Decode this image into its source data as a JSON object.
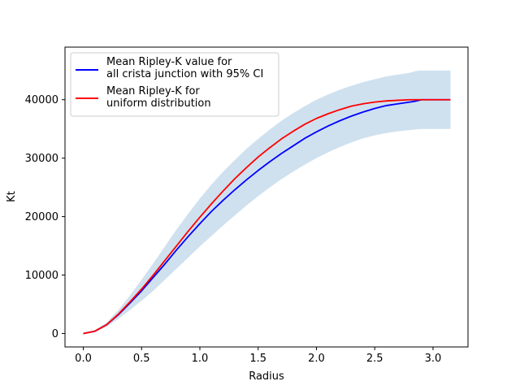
{
  "chart_data": {
    "type": "line",
    "xlabel": "Radius",
    "ylabel": "Kt",
    "xlim": [
      -0.157,
      3.3
    ],
    "ylim": [
      -2300,
      49000
    ],
    "xticks": [
      0.0,
      0.5,
      1.0,
      1.5,
      2.0,
      2.5,
      3.0
    ],
    "xtick_labels": [
      "0.0",
      "0.5",
      "1.0",
      "1.5",
      "2.0",
      "2.5",
      "3.0"
    ],
    "yticks": [
      0,
      10000,
      20000,
      30000,
      40000
    ],
    "ytick_labels": [
      "0",
      "10000",
      "20000",
      "30000",
      "40000"
    ],
    "legend_position": "top-left",
    "series": [
      {
        "name": "Mean Ripley-K value for\nall crista junction with 95% CI",
        "color": "#0000ff",
        "x": [
          0,
          0.1,
          0.2,
          0.3,
          0.4,
          0.5,
          0.6,
          0.7,
          0.8,
          0.9,
          1.0,
          1.1,
          1.2,
          1.3,
          1.4,
          1.5,
          1.6,
          1.7,
          1.8,
          1.9,
          2.0,
          2.1,
          2.2,
          2.3,
          2.4,
          2.5,
          2.6,
          2.7,
          2.8,
          2.85,
          2.9,
          3.0,
          3.1,
          3.15
        ],
        "y": [
          0,
          400,
          1500,
          3200,
          5200,
          7300,
          9600,
          11900,
          14300,
          16600,
          18800,
          20900,
          22800,
          24600,
          26300,
          27900,
          29400,
          30800,
          32100,
          33400,
          34500,
          35500,
          36400,
          37200,
          37900,
          38500,
          39000,
          39300,
          39600,
          39750,
          40000,
          40000,
          40000,
          40000
        ]
      },
      {
        "name": "Mean Ripley-K for\nuniform distribution",
        "color": "#ff0000",
        "x": [
          0,
          0.1,
          0.2,
          0.3,
          0.4,
          0.5,
          0.6,
          0.7,
          0.8,
          0.9,
          1.0,
          1.1,
          1.2,
          1.3,
          1.4,
          1.5,
          1.6,
          1.7,
          1.8,
          1.9,
          2.0,
          2.1,
          2.2,
          2.3,
          2.4,
          2.5,
          2.6,
          2.7,
          2.8,
          2.9,
          3.0,
          3.1,
          3.15
        ],
        "y": [
          0,
          400,
          1500,
          3300,
          5400,
          7600,
          10000,
          12500,
          15000,
          17500,
          19900,
          22200,
          24400,
          26500,
          28400,
          30200,
          31800,
          33300,
          34600,
          35800,
          36800,
          37600,
          38300,
          38900,
          39300,
          39600,
          39800,
          39900,
          40000,
          40000,
          40000,
          40000,
          40000
        ]
      }
    ],
    "ci_band": {
      "color": "#cfe1ef",
      "x": [
        0,
        0.1,
        0.2,
        0.3,
        0.4,
        0.5,
        0.6,
        0.7,
        0.8,
        0.9,
        1.0,
        1.1,
        1.2,
        1.3,
        1.4,
        1.5,
        1.6,
        1.7,
        1.8,
        1.9,
        2.0,
        2.1,
        2.2,
        2.3,
        2.4,
        2.5,
        2.6,
        2.7,
        2.8,
        2.85,
        2.9,
        3.0,
        3.1,
        3.15
      ],
      "upper": [
        0,
        500,
        1900,
        4000,
        6500,
        9200,
        12000,
        14900,
        17800,
        20500,
        23100,
        25500,
        27700,
        29700,
        31600,
        33300,
        34900,
        36400,
        37700,
        38900,
        40000,
        40900,
        41700,
        42400,
        43000,
        43500,
        44000,
        44300,
        44600,
        44900,
        45000,
        45000,
        45000,
        45000
      ],
      "lower": [
        0,
        300,
        1100,
        2500,
        4000,
        5600,
        7300,
        9200,
        11100,
        13000,
        14900,
        16700,
        18500,
        20200,
        21900,
        23500,
        25000,
        26400,
        27700,
        28900,
        30000,
        31000,
        31900,
        32700,
        33400,
        33900,
        34300,
        34600,
        34800,
        34900,
        35000,
        35000,
        35000,
        35000
      ]
    }
  }
}
